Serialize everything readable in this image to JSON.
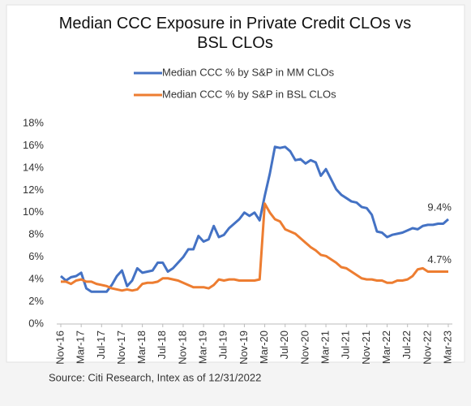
{
  "chart_data": {
    "type": "line",
    "title": "Median CCC Exposure in Private Credit CLOs vs BSL CLOs",
    "source": "Source: Citi Research, Intex as of 12/31/2022",
    "categories": [
      "Nov-16",
      null,
      null,
      null,
      "Mar-17",
      null,
      null,
      null,
      "Jul-17",
      null,
      null,
      null,
      "Nov-17",
      null,
      null,
      null,
      "Mar-18",
      null,
      null,
      null,
      "Jul-18",
      null,
      null,
      null,
      "Nov-18",
      null,
      null,
      null,
      "Mar-19",
      null,
      null,
      null,
      "Jul-19",
      null,
      null,
      null,
      "Nov-19",
      null,
      null,
      null,
      "Mar-20",
      null,
      null,
      null,
      "Jul-20",
      null,
      null,
      null,
      "Nov-20",
      null,
      null,
      null,
      "Mar-21",
      null,
      null,
      null,
      "Jul-21",
      null,
      null,
      null,
      "Nov-21",
      null,
      null,
      null,
      "Mar-22",
      null,
      null,
      null,
      "Jul-22",
      null,
      null,
      null,
      "Nov-22",
      null,
      null,
      null,
      "Mar-23"
    ],
    "series": [
      {
        "name": "Median CCC % by S&P in MM CLOs",
        "color": "#4472c4",
        "end_label": "9.4%",
        "values": [
          4.3,
          3.9,
          4.2,
          4.3,
          4.6,
          3.2,
          2.9,
          2.9,
          2.9,
          2.9,
          3.5,
          4.3,
          4.8,
          3.4,
          3.9,
          5.0,
          4.6,
          4.7,
          4.8,
          5.5,
          5.5,
          4.7,
          5.0,
          5.5,
          6.0,
          6.7,
          6.7,
          7.9,
          7.4,
          7.6,
          8.8,
          7.8,
          8.0,
          8.6,
          9.0,
          9.4,
          10.0,
          9.7,
          10.0,
          9.3,
          11.5,
          13.5,
          15.9,
          15.8,
          15.9,
          15.5,
          14.7,
          14.8,
          14.4,
          14.7,
          14.5,
          13.3,
          13.9,
          13.0,
          12.1,
          11.6,
          11.3,
          11.0,
          10.9,
          10.5,
          10.4,
          9.8,
          8.3,
          8.2,
          7.8,
          8.0,
          8.1,
          8.2,
          8.4,
          8.6,
          8.5,
          8.8,
          8.9,
          8.9,
          9.0,
          9.0,
          9.4
        ]
      },
      {
        "name": "Median CCC % by S&P in BSL CLOs",
        "color": "#ed7d31",
        "end_label": "4.7%",
        "values": [
          3.8,
          3.8,
          3.6,
          3.9,
          4.0,
          3.8,
          3.8,
          3.6,
          3.5,
          3.4,
          3.2,
          3.1,
          3.0,
          3.1,
          3.0,
          3.1,
          3.6,
          3.7,
          3.7,
          3.8,
          4.1,
          4.1,
          4.0,
          3.9,
          3.7,
          3.5,
          3.3,
          3.3,
          3.3,
          3.2,
          3.5,
          4.0,
          3.9,
          4.0,
          4.0,
          3.9,
          3.9,
          3.9,
          3.9,
          4.0,
          10.8,
          10.0,
          9.4,
          9.2,
          8.5,
          8.3,
          8.1,
          7.7,
          7.3,
          6.9,
          6.6,
          6.2,
          6.1,
          5.8,
          5.5,
          5.1,
          5.0,
          4.7,
          4.4,
          4.1,
          4.0,
          4.0,
          3.9,
          3.9,
          3.7,
          3.7,
          3.9,
          3.9,
          4.0,
          4.3,
          4.9,
          5.0,
          4.7,
          4.7,
          4.7,
          4.7,
          4.7
        ]
      }
    ],
    "ylim": [
      0,
      18
    ],
    "yticks": [
      {
        "value": 0,
        "label": "0%"
      },
      {
        "value": 2,
        "label": "2%"
      },
      {
        "value": 4,
        "label": "4%"
      },
      {
        "value": 6,
        "label": "6%"
      },
      {
        "value": 8,
        "label": "8%"
      },
      {
        "value": 10,
        "label": "10%"
      },
      {
        "value": 12,
        "label": "12%"
      },
      {
        "value": 14,
        "label": "14%"
      },
      {
        "value": 16,
        "label": "16%"
      },
      {
        "value": 18,
        "label": "18%"
      }
    ],
    "grid": false
  }
}
